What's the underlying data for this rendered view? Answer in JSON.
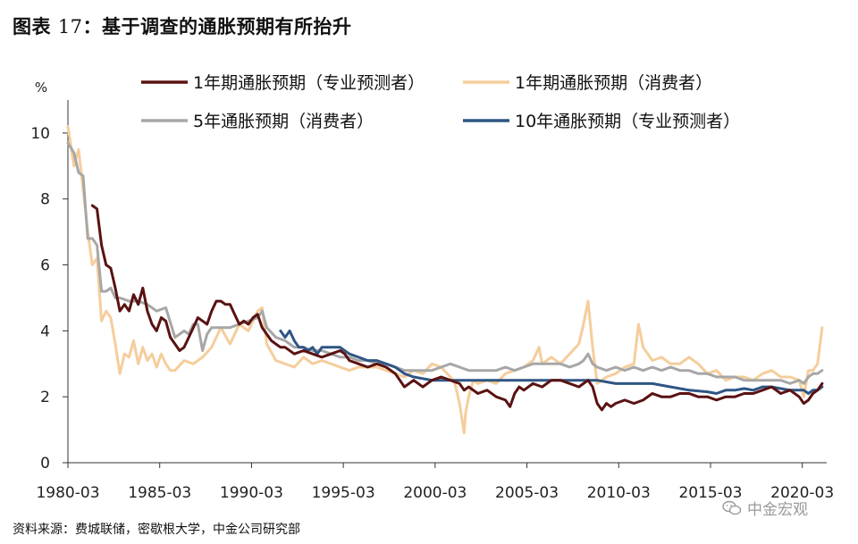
{
  "header": {
    "title_prefix": "图表",
    "title_number": "17",
    "title_text": "：基于调查的通胀预期有所抬升"
  },
  "footer": {
    "source": "资料来源：费城联储，密歇根大学，中金公司研究部",
    "watermark": "中金宏观",
    "watermark_icon": "wechat-icon"
  },
  "chart_data": {
    "type": "line",
    "ylabel": "%",
    "ylim": [
      0,
      11
    ],
    "yticks": [
      0,
      2,
      4,
      6,
      8,
      10
    ],
    "xlim": [
      1980.17,
      2021.5
    ],
    "xticks": [
      1980.17,
      1985.17,
      1990.17,
      1995.17,
      2000.17,
      2005.17,
      2010.17,
      2015.17,
      2020.17
    ],
    "xtick_labels": [
      "1980-03",
      "1985-03",
      "1990-03",
      "1995-03",
      "2000-03",
      "2005-03",
      "2010-03",
      "2015-03",
      "2020-03"
    ],
    "grid": false,
    "legend": "top",
    "series": [
      {
        "name": "1年期通胀预期（专业预测者）",
        "color": "#5a1212",
        "x": [
          1981.5,
          1981.75,
          1982.0,
          1982.25,
          1982.5,
          1982.75,
          1983.0,
          1983.25,
          1983.5,
          1983.75,
          1984.0,
          1984.25,
          1984.5,
          1984.75,
          1985.0,
          1985.25,
          1985.5,
          1985.75,
          1986.0,
          1986.25,
          1986.5,
          1986.75,
          1987.0,
          1987.25,
          1987.5,
          1987.75,
          1988.0,
          1988.25,
          1988.5,
          1988.75,
          1989.0,
          1989.25,
          1989.5,
          1989.75,
          1990.0,
          1990.25,
          1990.5,
          1990.75,
          1991.0,
          1991.25,
          1991.5,
          1991.75,
          1992.0,
          1992.5,
          1993.0,
          1993.5,
          1994.0,
          1994.5,
          1995.0,
          1995.25,
          1995.5,
          1996.0,
          1996.5,
          1997.0,
          1997.5,
          1998.0,
          1998.25,
          1998.5,
          1999.0,
          1999.5,
          2000.0,
          2000.5,
          2001.0,
          2001.5,
          2001.75,
          2002.0,
          2002.5,
          2003.0,
          2003.5,
          2004.0,
          2004.25,
          2004.5,
          2004.75,
          2005.0,
          2005.5,
          2006.0,
          2006.5,
          2007.0,
          2007.5,
          2008.0,
          2008.25,
          2008.5,
          2008.75,
          2009.0,
          2009.25,
          2009.5,
          2009.75,
          2010.0,
          2010.5,
          2011.0,
          2011.5,
          2012.0,
          2012.5,
          2013.0,
          2013.5,
          2014.0,
          2014.5,
          2015.0,
          2015.5,
          2016.0,
          2016.5,
          2017.0,
          2017.5,
          2018.0,
          2018.5,
          2019.0,
          2019.5,
          2020.0,
          2020.25,
          2020.5,
          2020.75,
          2021.0,
          2021.25
        ],
        "values": [
          7.8,
          7.7,
          6.6,
          6.0,
          5.9,
          5.3,
          4.6,
          4.8,
          4.6,
          5.1,
          4.8,
          5.3,
          4.6,
          4.2,
          4.0,
          4.4,
          4.3,
          3.8,
          3.6,
          3.4,
          3.5,
          3.8,
          4.1,
          4.4,
          4.3,
          4.2,
          4.6,
          4.9,
          4.9,
          4.8,
          4.8,
          4.5,
          4.2,
          4.3,
          4.2,
          4.4,
          4.5,
          4.1,
          3.9,
          3.7,
          3.6,
          3.5,
          3.5,
          3.3,
          3.4,
          3.3,
          3.2,
          3.3,
          3.4,
          3.3,
          3.1,
          3.0,
          2.9,
          3.0,
          2.9,
          2.7,
          2.5,
          2.3,
          2.5,
          2.3,
          2.5,
          2.6,
          2.5,
          2.4,
          2.2,
          2.3,
          2.1,
          2.2,
          2.0,
          1.9,
          1.7,
          2.1,
          2.3,
          2.2,
          2.4,
          2.3,
          2.5,
          2.5,
          2.4,
          2.3,
          2.4,
          2.5,
          2.3,
          1.8,
          1.6,
          1.8,
          1.7,
          1.8,
          1.9,
          1.8,
          1.9,
          2.1,
          2.0,
          2.0,
          2.1,
          2.1,
          2.0,
          2.0,
          1.9,
          2.0,
          2.0,
          2.1,
          2.1,
          2.2,
          2.3,
          2.1,
          2.2,
          2.0,
          1.8,
          1.9,
          2.1,
          2.2,
          2.4
        ]
      },
      {
        "name": "1年期通胀预期（消费者）",
        "color": "#f5cd9c",
        "x": [
          1980.17,
          1980.5,
          1980.75,
          1981.0,
          1981.25,
          1981.5,
          1981.75,
          1982.0,
          1982.25,
          1982.5,
          1982.75,
          1983.0,
          1983.25,
          1983.5,
          1983.75,
          1984.0,
          1984.25,
          1984.5,
          1984.75,
          1985.0,
          1985.25,
          1985.5,
          1985.75,
          1986.0,
          1986.5,
          1987.0,
          1987.5,
          1988.0,
          1988.5,
          1989.0,
          1989.5,
          1990.0,
          1990.5,
          1990.75,
          1991.0,
          1991.5,
          1992.0,
          1992.5,
          1993.0,
          1993.5,
          1994.0,
          1994.5,
          1995.0,
          1995.5,
          1996.0,
          1996.5,
          1997.0,
          1997.5,
          1998.0,
          1998.5,
          1999.0,
          1999.5,
          2000.0,
          2000.5,
          2001.0,
          2001.25,
          2001.5,
          2001.75,
          2001.83,
          2002.0,
          2002.25,
          2002.5,
          2003.0,
          2003.5,
          2004.0,
          2004.5,
          2005.0,
          2005.5,
          2005.83,
          2006.0,
          2006.5,
          2007.0,
          2007.5,
          2008.0,
          2008.25,
          2008.5,
          2008.75,
          2009.0,
          2009.5,
          2010.0,
          2010.5,
          2011.0,
          2011.25,
          2011.5,
          2012.0,
          2012.5,
          2013.0,
          2013.5,
          2014.0,
          2014.5,
          2015.0,
          2015.5,
          2016.0,
          2016.5,
          2017.0,
          2017.5,
          2018.0,
          2018.5,
          2019.0,
          2019.5,
          2020.0,
          2020.25,
          2020.5,
          2020.75,
          2021.0,
          2021.25
        ],
        "values": [
          10.2,
          9.0,
          9.5,
          8.3,
          7.0,
          6.0,
          6.2,
          4.3,
          4.6,
          4.4,
          3.6,
          2.7,
          3.3,
          3.2,
          3.7,
          3.0,
          3.5,
          3.1,
          3.3,
          2.9,
          3.3,
          3.0,
          2.8,
          2.8,
          3.1,
          3.0,
          3.2,
          3.5,
          4.1,
          3.6,
          4.2,
          4.0,
          4.6,
          4.7,
          3.6,
          3.1,
          3.0,
          2.9,
          3.2,
          3.0,
          3.1,
          3.0,
          2.9,
          2.8,
          2.9,
          2.9,
          2.9,
          2.8,
          2.7,
          2.6,
          2.8,
          2.7,
          3.0,
          2.9,
          2.6,
          2.4,
          1.8,
          0.9,
          1.5,
          2.0,
          2.5,
          2.4,
          2.5,
          2.4,
          2.7,
          2.8,
          2.9,
          3.1,
          3.5,
          3.0,
          3.2,
          3.0,
          3.3,
          3.6,
          4.2,
          4.9,
          3.5,
          2.4,
          2.6,
          2.7,
          2.9,
          3.0,
          4.2,
          3.5,
          3.1,
          3.2,
          3.0,
          3.0,
          3.2,
          3.0,
          2.7,
          2.8,
          2.5,
          2.6,
          2.6,
          2.5,
          2.7,
          2.8,
          2.6,
          2.6,
          2.5,
          2.0,
          2.8,
          2.8,
          3.0,
          4.1
        ]
      },
      {
        "name": "5年通胀预期（消费者）",
        "color": "#a7a7a7",
        "x": [
          1980.17,
          1980.5,
          1980.75,
          1981.0,
          1981.25,
          1981.5,
          1981.75,
          1982.0,
          1982.25,
          1982.5,
          1982.75,
          1983.0,
          1983.5,
          1984.0,
          1984.5,
          1985.0,
          1985.5,
          1986.0,
          1986.25,
          1986.5,
          1986.75,
          1987.0,
          1987.25,
          1987.5,
          1987.75,
          1988.0,
          1988.5,
          1989.0,
          1989.5,
          1990.0,
          1990.5,
          1990.75,
          1991.0,
          1991.5,
          1992.0,
          1992.5,
          1993.0,
          1993.5,
          1994.0,
          1994.5,
          1995.0,
          1995.5,
          1996.0,
          1996.5,
          1997.0,
          1997.5,
          1998.0,
          1998.5,
          1999.0,
          1999.5,
          2000.0,
          2000.5,
          2001.0,
          2001.5,
          2002.0,
          2002.5,
          2003.0,
          2003.5,
          2004.0,
          2004.5,
          2005.0,
          2005.5,
          2006.0,
          2006.5,
          2007.0,
          2007.5,
          2008.0,
          2008.25,
          2008.5,
          2008.75,
          2009.0,
          2009.5,
          2010.0,
          2010.5,
          2011.0,
          2011.5,
          2012.0,
          2012.5,
          2013.0,
          2013.5,
          2014.0,
          2014.5,
          2015.0,
          2015.5,
          2016.0,
          2016.5,
          2017.0,
          2017.5,
          2018.0,
          2018.5,
          2019.0,
          2019.5,
          2020.0,
          2020.25,
          2020.5,
          2020.75,
          2021.0,
          2021.25
        ],
        "values": [
          9.7,
          9.4,
          8.8,
          8.7,
          6.8,
          6.8,
          6.6,
          5.2,
          5.2,
          5.3,
          5.0,
          5.0,
          4.9,
          4.9,
          4.8,
          4.6,
          4.7,
          3.8,
          3.9,
          4.0,
          3.9,
          4.2,
          4.2,
          3.4,
          3.9,
          4.1,
          4.1,
          4.1,
          4.2,
          4.3,
          4.4,
          4.6,
          4.1,
          3.8,
          3.7,
          3.5,
          3.5,
          3.4,
          3.4,
          3.3,
          3.2,
          3.2,
          3.1,
          3.1,
          3.0,
          3.0,
          2.9,
          2.8,
          2.8,
          2.8,
          2.8,
          2.9,
          3.0,
          2.9,
          2.8,
          2.8,
          2.8,
          2.8,
          2.9,
          2.8,
          2.9,
          3.0,
          3.0,
          3.0,
          3.0,
          2.9,
          3.0,
          3.1,
          3.3,
          3.0,
          2.9,
          2.8,
          2.9,
          2.8,
          2.9,
          2.8,
          2.9,
          2.8,
          2.9,
          2.8,
          2.8,
          2.7,
          2.7,
          2.6,
          2.6,
          2.6,
          2.5,
          2.5,
          2.5,
          2.5,
          2.5,
          2.4,
          2.5,
          2.4,
          2.6,
          2.7,
          2.7,
          2.8
        ]
      },
      {
        "name": "10年通胀预期（专业预测者）",
        "color": "#2f5584",
        "x": [
          1991.75,
          1992.0,
          1992.25,
          1992.5,
          1992.75,
          1993.0,
          1993.25,
          1993.5,
          1993.75,
          1994.0,
          1994.5,
          1995.0,
          1995.5,
          1996.0,
          1996.5,
          1997.0,
          1997.5,
          1998.0,
          1998.5,
          1999.0,
          2000.0,
          2001.0,
          2002.0,
          2003.0,
          2004.0,
          2005.0,
          2006.0,
          2007.0,
          2008.0,
          2009.0,
          2010.0,
          2011.0,
          2012.0,
          2013.0,
          2014.0,
          2015.0,
          2015.5,
          2016.0,
          2016.5,
          2017.0,
          2017.5,
          2018.0,
          2018.5,
          2019.0,
          2019.5,
          2020.0,
          2020.25,
          2020.5,
          2020.75,
          2021.0,
          2021.25
        ],
        "values": [
          4.0,
          3.8,
          4.0,
          3.7,
          3.5,
          3.5,
          3.4,
          3.5,
          3.3,
          3.5,
          3.5,
          3.5,
          3.3,
          3.2,
          3.1,
          3.1,
          3.0,
          2.9,
          2.7,
          2.6,
          2.5,
          2.5,
          2.5,
          2.5,
          2.5,
          2.5,
          2.5,
          2.5,
          2.5,
          2.5,
          2.4,
          2.4,
          2.4,
          2.3,
          2.2,
          2.15,
          2.1,
          2.2,
          2.2,
          2.25,
          2.2,
          2.3,
          2.3,
          2.25,
          2.2,
          2.2,
          2.2,
          2.1,
          2.2,
          2.2,
          2.3
        ]
      }
    ]
  }
}
